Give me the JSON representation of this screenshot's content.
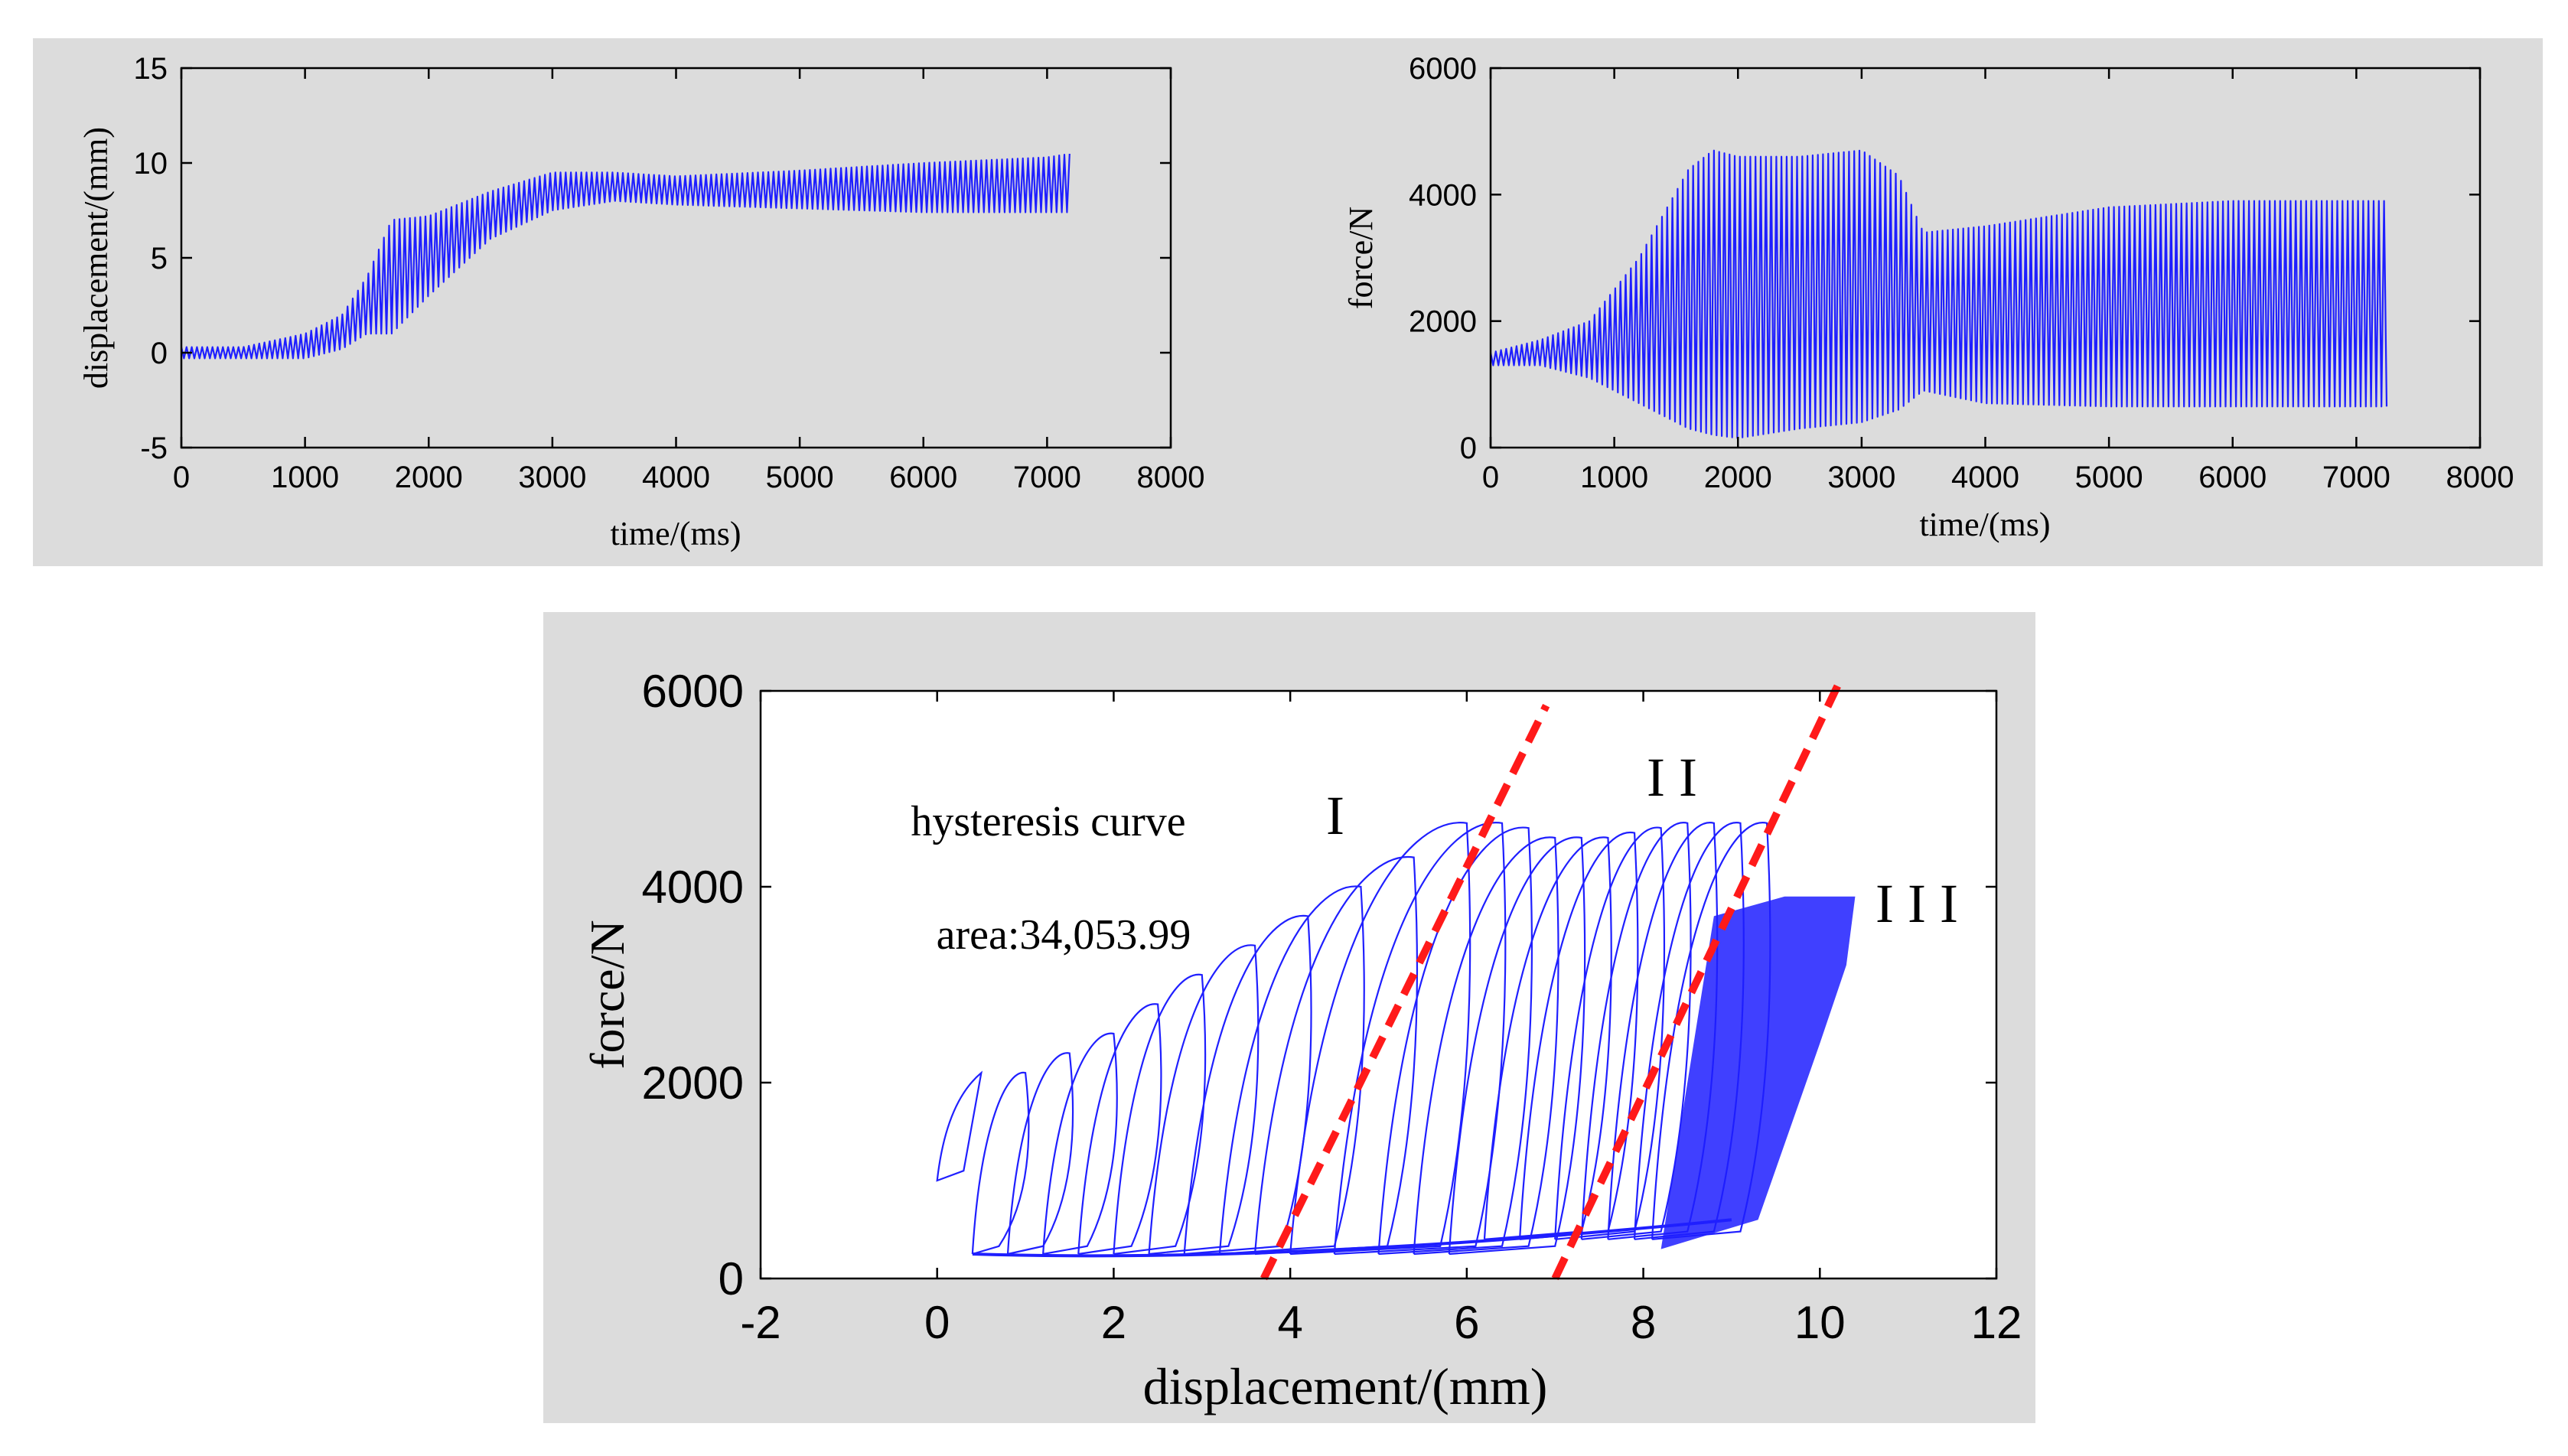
{
  "chart_data": [
    {
      "type": "line",
      "title": "",
      "xlabel": "time/(ms)",
      "ylabel": "displacement/(mm)",
      "xlim": [
        0,
        8000
      ],
      "ylim": [
        -5,
        15
      ],
      "xticks": [
        "0",
        "1000",
        "2000",
        "3000",
        "4000",
        "5000",
        "6000",
        "7000",
        "8000"
      ],
      "yticks": [
        "-5",
        "0",
        "5",
        "10",
        "15"
      ],
      "series": [
        {
          "name": "displacement",
          "color": "#1f1fff",
          "x": [
            0,
            500,
            1000,
            1300,
            1500,
            1700,
            2000,
            2500,
            3000,
            3500,
            4000,
            5000,
            6000,
            7000,
            7200
          ],
          "y_min": [
            -0.3,
            -0.3,
            -0.3,
            0.2,
            1.0,
            1.0,
            3.0,
            6.0,
            7.5,
            8.0,
            7.8,
            7.6,
            7.4,
            7.4,
            7.4
          ],
          "y_max": [
            0.3,
            0.3,
            1.0,
            2.0,
            4.0,
            7.0,
            7.2,
            8.5,
            9.5,
            9.5,
            9.3,
            9.6,
            10.0,
            10.3,
            10.5
          ]
        }
      ]
    },
    {
      "type": "line",
      "title": "",
      "xlabel": "time/(ms)",
      "ylabel": "force/N",
      "xlim": [
        0,
        8000
      ],
      "ylim": [
        0,
        6000
      ],
      "xticks": [
        "0",
        "1000",
        "2000",
        "3000",
        "4000",
        "5000",
        "6000",
        "7000",
        "8000"
      ],
      "yticks": [
        "0",
        "2000",
        "4000",
        "6000"
      ],
      "series": [
        {
          "name": "force",
          "color": "#1f1fff",
          "x": [
            0,
            400,
            800,
            1200,
            1600,
            1800,
            2000,
            2500,
            3000,
            3300,
            3500,
            4000,
            5000,
            6000,
            7000,
            7250
          ],
          "y_min": [
            1300,
            1300,
            1100,
            700,
            300,
            200,
            150,
            300,
            400,
            600,
            900,
            700,
            650,
            650,
            650,
            650
          ],
          "y_max": [
            1500,
            1700,
            2000,
            3000,
            4400,
            4700,
            4600,
            4600,
            4700,
            4300,
            3400,
            3500,
            3800,
            3900,
            3900,
            3900
          ]
        }
      ]
    },
    {
      "type": "scatter",
      "title": "",
      "xlabel": "displacement/(mm)",
      "ylabel": "force/N",
      "xlim": [
        -2,
        12
      ],
      "ylim": [
        0,
        6000
      ],
      "xticks": [
        "-2",
        "0",
        "2",
        "4",
        "6",
        "8",
        "10",
        "12"
      ],
      "yticks": [
        "0",
        "2000",
        "4000",
        "6000"
      ],
      "series": [
        {
          "name": "hysteresis loops",
          "color": "#1f1fff",
          "loops": [
            {
              "d0": 0.4,
              "d1": 1.0,
              "peak": 2100
            },
            {
              "d0": 0.8,
              "d1": 1.5,
              "peak": 2300
            },
            {
              "d0": 1.2,
              "d1": 2.0,
              "peak": 2500
            },
            {
              "d0": 1.6,
              "d1": 2.5,
              "peak": 2800
            },
            {
              "d0": 2.0,
              "d1": 3.0,
              "peak": 3100
            },
            {
              "d0": 2.4,
              "d1": 3.6,
              "peak": 3400
            },
            {
              "d0": 2.8,
              "d1": 4.2,
              "peak": 3700
            },
            {
              "d0": 3.2,
              "d1": 4.8,
              "peak": 4000
            },
            {
              "d0": 3.6,
              "d1": 5.4,
              "peak": 4300
            },
            {
              "d0": 4.0,
              "d1": 6.0,
              "peak": 4650
            },
            {
              "d0": 4.5,
              "d1": 6.4,
              "peak": 4650
            },
            {
              "d0": 5.0,
              "d1": 6.7,
              "peak": 4600
            },
            {
              "d0": 5.4,
              "d1": 7.0,
              "peak": 4500
            },
            {
              "d0": 5.8,
              "d1": 7.3,
              "peak": 4500
            },
            {
              "d0": 6.2,
              "d1": 7.6,
              "peak": 4500
            },
            {
              "d0": 6.6,
              "d1": 7.9,
              "peak": 4550
            },
            {
              "d0": 7.0,
              "d1": 8.2,
              "peak": 4600
            },
            {
              "d0": 7.3,
              "d1": 8.5,
              "peak": 4650
            },
            {
              "d0": 7.6,
              "d1": 8.8,
              "peak": 4650
            },
            {
              "d0": 7.9,
              "d1": 9.1,
              "peak": 4650
            },
            {
              "d0": 8.1,
              "d1": 9.4,
              "peak": 4650
            }
          ]
        }
      ],
      "dashed_boundaries": [
        {
          "x": [
            3.7,
            6.9
          ],
          "y": [
            0,
            5850
          ],
          "color": "#ff1a1a"
        },
        {
          "x": [
            7.0,
            10.2
          ],
          "y": [
            0,
            6050
          ],
          "color": "#ff1a1a"
        }
      ],
      "annotations": {
        "title_line1": "hysteresis curve",
        "title_line2": "area:34,053.99",
        "region_1": "I",
        "region_2": "I I",
        "region_3": "I I I"
      }
    }
  ]
}
